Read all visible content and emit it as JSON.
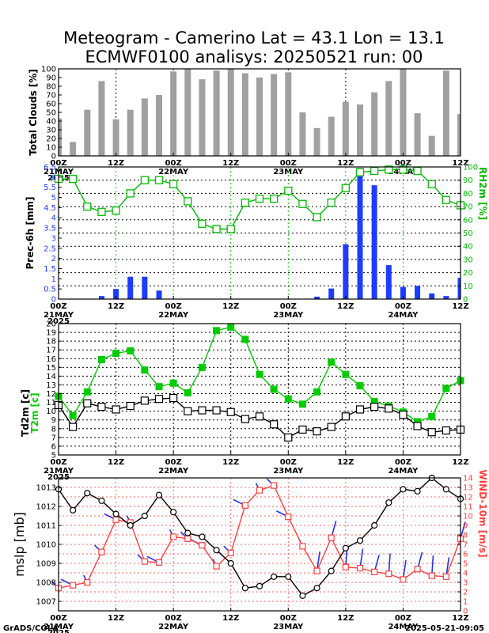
{
  "title_line1": "Meteogram - Camerino Lat = 43.1 Lon = 13.1",
  "title_line2": "ECMWF0100 analisys: 20250521 run: 00",
  "footer_left": "GrADS/COLA",
  "footer_right": "2025-05-21-09:05",
  "colors": {
    "clouds": "#a0a0a0",
    "precip": "#1e3cff",
    "rh": "#00bb00",
    "t2m": "#00cc00",
    "td2m": "#000000",
    "mslp": "#000000",
    "wind": "#ff4040",
    "barbs": "#2233ee",
    "grid_black": "#000000",
    "grid_green": "#00cc00",
    "grid_red": "#ff6666"
  },
  "x_axis": {
    "time_labels": [
      "00Z",
      "12Z",
      "00Z",
      "12Z",
      "00Z",
      "12Z",
      "00Z",
      "12Z"
    ],
    "date_labels": [
      "21MAY",
      "22MAY",
      "23MAY",
      "24MAY"
    ],
    "year_label": "2025"
  },
  "chart_data": [
    {
      "type": "bar",
      "ylabel": "Total Clouds [%]",
      "ylim": [
        0,
        100
      ],
      "yticks": [
        "0",
        "10",
        "20",
        "30",
        "40",
        "50",
        "60",
        "70",
        "80",
        "90",
        "100"
      ],
      "x": [
        "2025-05-21 00Z",
        "2025-05-21 03Z",
        "2025-05-21 06Z",
        "2025-05-21 09Z",
        "2025-05-21 12Z",
        "2025-05-21 15Z",
        "2025-05-21 18Z",
        "2025-05-21 21Z",
        "2025-05-22 00Z",
        "2025-05-22 03Z",
        "2025-05-22 06Z",
        "2025-05-22 09Z",
        "2025-05-22 12Z",
        "2025-05-22 15Z",
        "2025-05-22 18Z",
        "2025-05-22 21Z",
        "2025-05-23 00Z",
        "2025-05-23 03Z",
        "2025-05-23 06Z",
        "2025-05-23 09Z",
        "2025-05-23 12Z",
        "2025-05-23 15Z",
        "2025-05-23 18Z",
        "2025-05-23 21Z",
        "2025-05-24 00Z",
        "2025-05-24 03Z",
        "2025-05-24 06Z",
        "2025-05-24 09Z",
        "2025-05-24 12Z"
      ],
      "values": [
        43,
        16,
        53,
        86,
        42,
        53,
        66,
        70,
        97,
        100,
        88,
        98,
        100,
        95,
        90,
        94,
        96,
        50,
        32,
        45,
        62,
        59,
        73,
        86,
        100,
        49,
        23,
        98,
        48
      ]
    },
    {
      "type": "bar+line",
      "ylabel": "Prec-6h [mm]",
      "y2label": "RH2m [%]",
      "ylim": [
        0,
        6.5
      ],
      "yticks": [
        "0",
        "0.5",
        "1",
        "1.5",
        "2",
        "2.5",
        "3",
        "3.5",
        "4",
        "4.5",
        "5",
        "5.5",
        "6",
        "6.5"
      ],
      "y2lim": [
        0,
        100
      ],
      "y2ticks": [
        "0",
        "10",
        "20",
        "30",
        "40",
        "50",
        "60",
        "70",
        "80",
        "90",
        "100"
      ],
      "series": [
        {
          "name": "Prec-6h [mm]",
          "type": "bar",
          "values": [
            0,
            0,
            0,
            0.15,
            0.5,
            1.1,
            1.1,
            0.42,
            0,
            0,
            0,
            0,
            0,
            0,
            0,
            0,
            0,
            0,
            0.12,
            0.52,
            2.7,
            6.45,
            5.6,
            1.67,
            0.6,
            0.65,
            0.28,
            0.15,
            1.05
          ]
        },
        {
          "name": "RH2m [%]",
          "type": "line",
          "values": [
            91,
            91,
            70,
            66,
            67,
            80,
            90,
            90,
            87,
            74,
            57,
            53,
            53,
            73,
            76,
            76,
            82,
            72,
            62,
            73,
            84,
            96,
            97,
            98,
            98,
            97,
            87,
            75,
            71
          ]
        }
      ]
    },
    {
      "type": "line",
      "ylabel": "Td2m [c]",
      "y2label": "T2m [c]",
      "ylim": [
        5,
        20
      ],
      "yticks": [
        "5",
        "6",
        "7",
        "8",
        "9",
        "10",
        "11",
        "12",
        "13",
        "14",
        "15",
        "16",
        "17",
        "18",
        "19",
        "20"
      ],
      "series": [
        {
          "name": "T2m [c]",
          "values": [
            11.7,
            9.5,
            12.2,
            15.9,
            16.6,
            16.9,
            14.7,
            12.8,
            13.2,
            12.1,
            15.0,
            19.2,
            19.6,
            18.2,
            14.2,
            12.5,
            11.4,
            10.8,
            12.2,
            15.6,
            14.2,
            12.9,
            11.1,
            10.6,
            9.9,
            8.8,
            9.4,
            12.6,
            13.5
          ]
        },
        {
          "name": "Td2m [c]",
          "values": [
            10.7,
            8.2,
            10.9,
            10.5,
            10.2,
            10.6,
            11.2,
            11.4,
            11.5,
            10.0,
            10.1,
            10.1,
            9.9,
            9.1,
            9.4,
            8.5,
            7.0,
            7.9,
            7.7,
            8.2,
            9.4,
            10.2,
            10.5,
            10.3,
            9.6,
            8.3,
            7.6,
            7.8,
            7.9
          ]
        }
      ]
    },
    {
      "type": "line",
      "ylabel": "mslp [mb]",
      "y2label": "WIND-10m [m/s]",
      "ylim": [
        1006.5,
        1013.5
      ],
      "yticks": [
        "1007",
        "1008",
        "1009",
        "1010",
        "1011",
        "1012",
        "1013"
      ],
      "y2lim": [
        0,
        14
      ],
      "y2ticks": [
        "0",
        "1",
        "2",
        "3",
        "4",
        "5",
        "6",
        "7",
        "8",
        "9",
        "10",
        "11",
        "12",
        "13",
        "14"
      ],
      "series": [
        {
          "name": "mslp [mb]",
          "values": [
            1012.9,
            1011.8,
            1012.7,
            1012.3,
            1011.6,
            1011.0,
            1011.5,
            1012.6,
            1011.7,
            1010.6,
            1010.4,
            1009.7,
            1009.0,
            1007.7,
            1007.8,
            1008.3,
            1008.3,
            1007.3,
            1007.7,
            1008.6,
            1009.8,
            1010.2,
            1011.0,
            1012.2,
            1012.9,
            1012.8,
            1013.5,
            1012.9,
            1012.4
          ]
        },
        {
          "name": "WIND-10m [m/s]",
          "values": [
            2.4,
            2.7,
            3.0,
            6.2,
            9.6,
            9.3,
            5.2,
            5.1,
            7.8,
            7.6,
            6.9,
            4.7,
            6.1,
            11.1,
            12.7,
            13.2,
            9.9,
            6.8,
            4.2,
            7.7,
            4.6,
            4.5,
            4.1,
            3.9,
            3.3,
            4.4,
            3.7,
            3.6,
            7.6
          ]
        }
      ]
    }
  ]
}
